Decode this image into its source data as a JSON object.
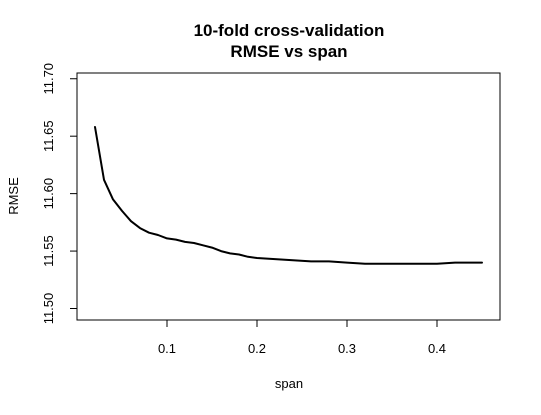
{
  "chart_data": {
    "type": "line",
    "title": [
      "10-fold cross-validation",
      "RMSE vs span"
    ],
    "xlabel": "span",
    "ylabel": "RMSE",
    "xlim": [
      0.0,
      0.47
    ],
    "ylim": [
      11.49,
      11.705
    ],
    "x_ticks": [
      0.1,
      0.2,
      0.3,
      0.4
    ],
    "x_tick_labels": [
      "0.1",
      "0.2",
      "0.3",
      "0.4"
    ],
    "y_ticks": [
      11.5,
      11.55,
      11.6,
      11.65,
      11.7
    ],
    "y_tick_labels": [
      "11.50",
      "11.55",
      "11.60",
      "11.65",
      "11.70"
    ],
    "grid": false,
    "line_color": "#000000",
    "series": [
      {
        "x": [
          0.02,
          0.03,
          0.04,
          0.05,
          0.06,
          0.07,
          0.08,
          0.09,
          0.1,
          0.11,
          0.12,
          0.13,
          0.14,
          0.15,
          0.16,
          0.17,
          0.18,
          0.19,
          0.2,
          0.22,
          0.24,
          0.26,
          0.28,
          0.3,
          0.32,
          0.34,
          0.36,
          0.38,
          0.4,
          0.42,
          0.45
        ],
        "y": [
          11.658,
          11.612,
          11.595,
          11.585,
          11.576,
          11.57,
          11.566,
          11.564,
          11.561,
          11.56,
          11.558,
          11.557,
          11.555,
          11.553,
          11.55,
          11.548,
          11.547,
          11.545,
          11.544,
          11.543,
          11.542,
          11.541,
          11.541,
          11.54,
          11.539,
          11.539,
          11.539,
          11.539,
          11.539,
          11.54,
          11.54
        ]
      }
    ]
  }
}
